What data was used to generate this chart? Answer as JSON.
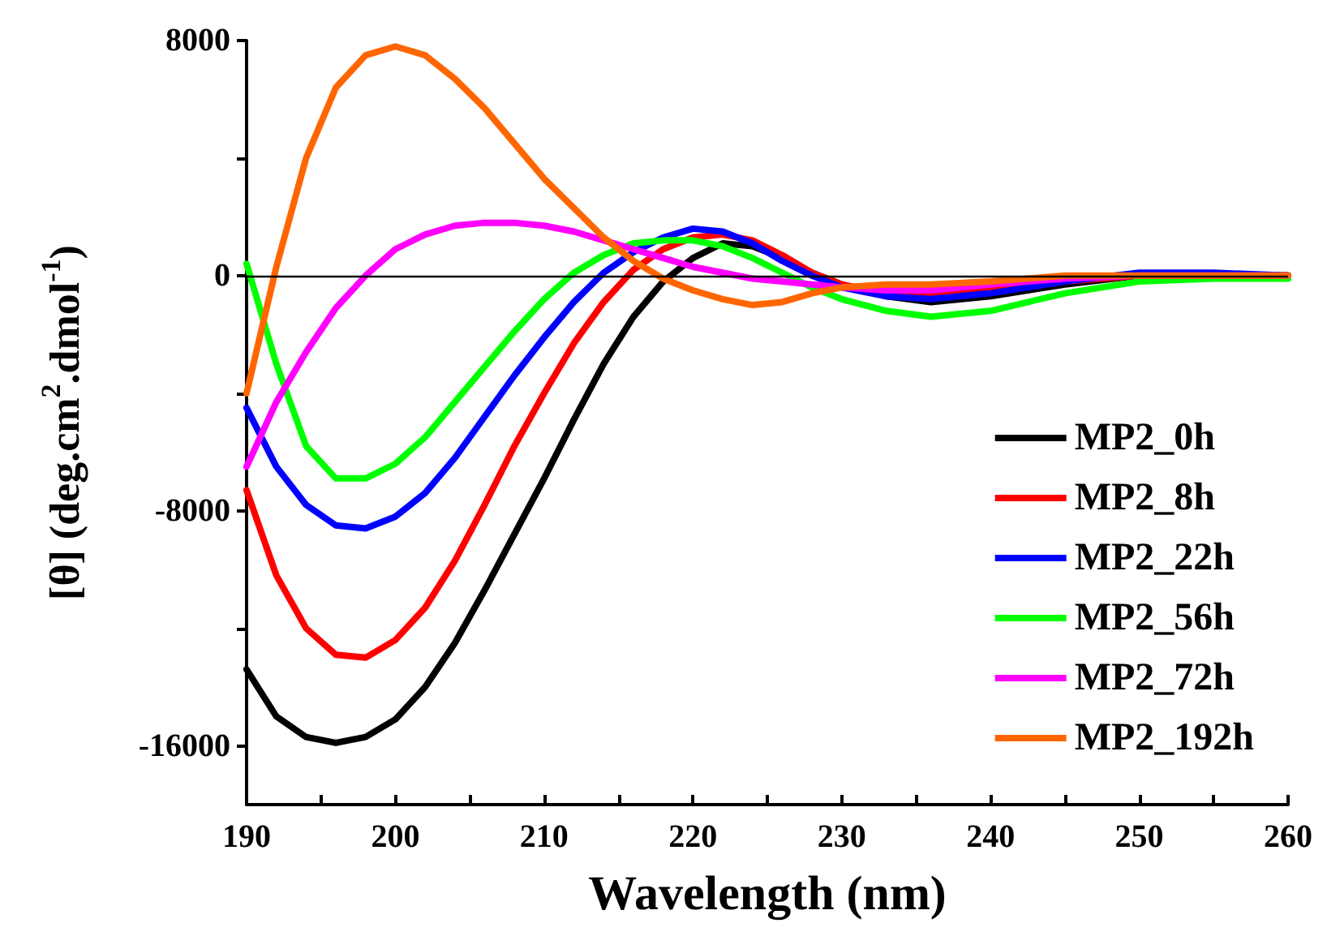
{
  "chart_data": {
    "type": "line",
    "xlabel": "Wavelength (nm)",
    "ylabel": "[θ] (deg.cm$^{2}$.dmol$^{-1}$)",
    "x": [
      190,
      192,
      194,
      196,
      198,
      200,
      202,
      204,
      206,
      208,
      210,
      212,
      214,
      216,
      218,
      220,
      222,
      224,
      226,
      228,
      230,
      233,
      236,
      240,
      245,
      250,
      255,
      260
    ],
    "series": [
      {
        "name": "MP2_0h",
        "color": "#000000",
        "values": [
          -13400,
          -15000,
          -15700,
          -15900,
          -15700,
          -15100,
          -14000,
          -12500,
          -10700,
          -8800,
          -6900,
          -4900,
          -3000,
          -1400,
          -200,
          600,
          1100,
          1000,
          600,
          100,
          -300,
          -700,
          -900,
          -700,
          -300,
          0,
          0,
          0
        ]
      },
      {
        "name": "MP2_8h",
        "color": "#ff0000",
        "values": [
          -7300,
          -10200,
          -12000,
          -12900,
          -13000,
          -12400,
          -11300,
          -9700,
          -7800,
          -5800,
          -4000,
          -2300,
          -900,
          200,
          900,
          1300,
          1400,
          1200,
          700,
          100,
          -300,
          -600,
          -700,
          -500,
          -200,
          0,
          0,
          0
        ]
      },
      {
        "name": "MP2_22h",
        "color": "#0000ff",
        "values": [
          -4500,
          -6500,
          -7800,
          -8500,
          -8600,
          -8200,
          -7400,
          -6200,
          -4800,
          -3400,
          -2100,
          -900,
          100,
          800,
          1300,
          1600,
          1500,
          1100,
          500,
          0,
          -400,
          -700,
          -800,
          -600,
          -200,
          100,
          100,
          0
        ]
      },
      {
        "name": "MP2_56h",
        "color": "#00ff00",
        "values": [
          400,
          -3000,
          -5800,
          -6900,
          -6900,
          -6400,
          -5500,
          -4300,
          -3100,
          -1900,
          -800,
          100,
          700,
          1100,
          1200,
          1200,
          1000,
          600,
          100,
          -400,
          -800,
          -1200,
          -1400,
          -1200,
          -600,
          -200,
          -100,
          -100
        ]
      },
      {
        "name": "MP2_72h",
        "color": "#ff00ff",
        "values": [
          -6500,
          -4300,
          -2600,
          -1100,
          0,
          900,
          1400,
          1700,
          1800,
          1800,
          1700,
          1500,
          1200,
          900,
          600,
          300,
          100,
          -100,
          -200,
          -300,
          -400,
          -500,
          -500,
          -300,
          -100,
          0,
          0,
          0
        ]
      },
      {
        "name": "MP2_192h",
        "color": "#ff6600",
        "values": [
          -4000,
          300,
          4000,
          6400,
          7500,
          7800,
          7500,
          6700,
          5700,
          4500,
          3300,
          2300,
          1300,
          500,
          -100,
          -500,
          -800,
          -1000,
          -900,
          -600,
          -400,
          -300,
          -300,
          -200,
          0,
          0,
          0,
          0
        ]
      }
    ],
    "xlim": [
      190,
      260
    ],
    "xticks": [
      190,
      {
        "value": 195,
        "label": null
      },
      200,
      {
        "value": 205,
        "label": null
      },
      210,
      {
        "value": 215,
        "label": null
      },
      220,
      {
        "value": 225,
        "label": null
      },
      230,
      {
        "value": 235,
        "label": null
      },
      240,
      {
        "value": 245,
        "label": null
      },
      250,
      {
        "value": 255,
        "label": null
      },
      260
    ],
    "ylim": [
      -18000,
      8000
    ],
    "yticks": [
      {
        "value": -16000,
        "label": "-16000"
      },
      {
        "value": -12000,
        "label": null
      },
      {
        "value": -8000,
        "label": "-8000"
      },
      {
        "value": -4000,
        "label": null
      },
      0,
      {
        "value": 4000,
        "label": null
      },
      8000
    ],
    "ref_lines": [
      {
        "axis": "y",
        "value": 0,
        "color": "#000000"
      }
    ],
    "legend": "bottom right",
    "grid": false,
    "marker": "none",
    "line_style": "solid"
  }
}
